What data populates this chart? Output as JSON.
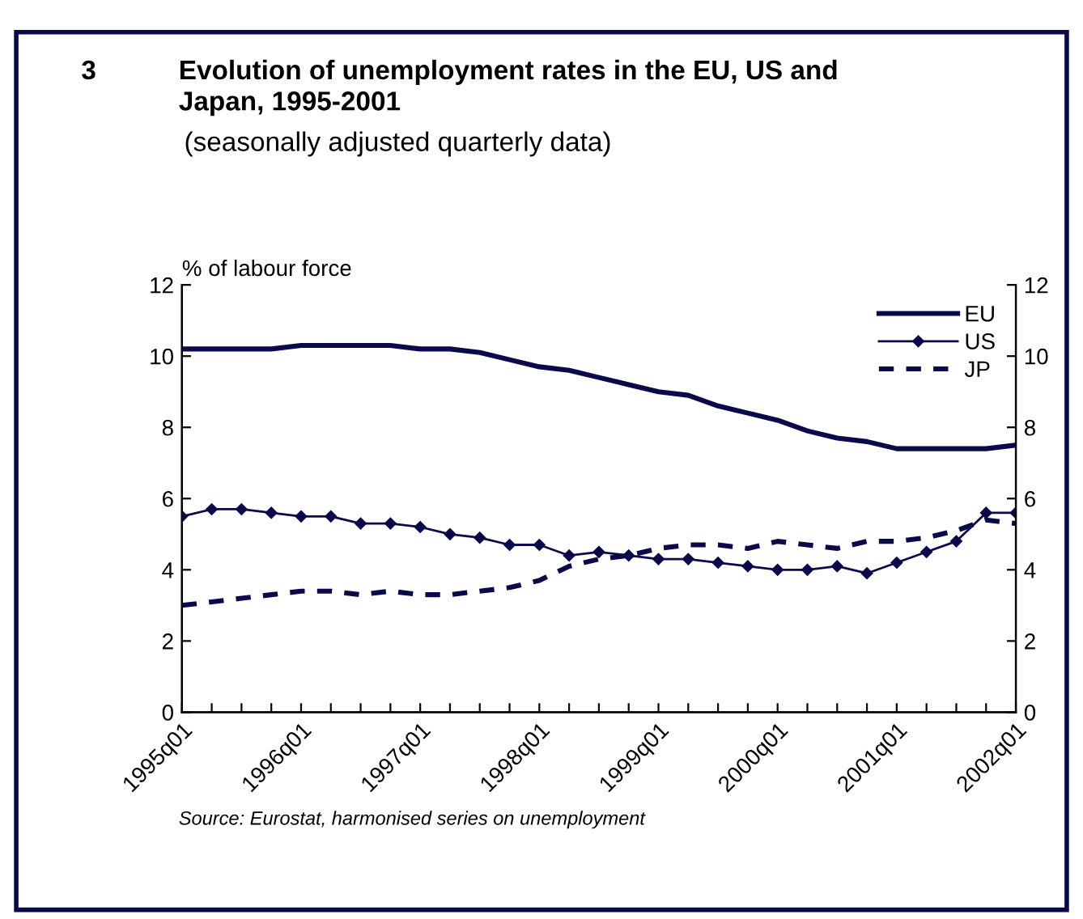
{
  "chart_data": {
    "type": "line",
    "title": "Evolution of unemployment rates in the EU, US and Japan, 1995-2001",
    "subtitle": "(seasonally adjusted quarterly data)",
    "ylabel": "% of labour force",
    "annotations": [
      "3",
      "Source: Eurostat, harmonised series on unemployment"
    ],
    "categories": [
      "1995q01",
      null,
      null,
      null,
      "1996q01",
      null,
      null,
      null,
      "1997q01",
      null,
      null,
      null,
      "1998q01",
      null,
      null,
      null,
      "1999q01",
      null,
      null,
      null,
      "2000q01",
      null,
      null,
      null,
      "2001q01",
      null,
      null,
      null,
      "2002q01"
    ],
    "series": [
      {
        "name": "EU",
        "color": "#0a0a4a",
        "line_style": "solid",
        "marker": "none",
        "values": [
          10.2,
          10.2,
          10.2,
          10.2,
          10.3,
          10.3,
          10.3,
          10.3,
          10.2,
          10.2,
          10.1,
          9.9,
          9.7,
          9.6,
          9.4,
          9.2,
          9.0,
          8.9,
          8.6,
          8.4,
          8.2,
          7.9,
          7.7,
          7.6,
          7.4,
          7.4,
          7.4,
          7.4,
          7.5
        ]
      },
      {
        "name": "US",
        "color": "#0a0a4a",
        "line_style": "solid",
        "marker": "diamond",
        "values": [
          5.5,
          5.7,
          5.7,
          5.6,
          5.5,
          5.5,
          5.3,
          5.3,
          5.2,
          5.0,
          4.9,
          4.7,
          4.7,
          4.4,
          4.5,
          4.4,
          4.3,
          4.3,
          4.2,
          4.1,
          4.0,
          4.0,
          4.1,
          3.9,
          4.2,
          4.5,
          4.8,
          5.6,
          5.6
        ]
      },
      {
        "name": "JP",
        "color": "#0a0a4a",
        "line_style": "dashed",
        "marker": "none",
        "values": [
          3.0,
          3.1,
          3.2,
          3.3,
          3.4,
          3.4,
          3.3,
          3.4,
          3.3,
          3.3,
          3.4,
          3.5,
          3.7,
          4.1,
          4.3,
          4.4,
          4.6,
          4.7,
          4.7,
          4.6,
          4.8,
          4.7,
          4.6,
          4.8,
          4.8,
          4.9,
          5.1,
          5.4,
          5.3
        ]
      }
    ],
    "ylim": [
      0,
      12
    ],
    "yticks": [
      0,
      2,
      4,
      6,
      8,
      10,
      12
    ],
    "y2lim": [
      0,
      12
    ],
    "y2ticks": [
      0,
      2,
      4,
      6,
      8,
      10,
      12
    ],
    "grid": false,
    "legend": "top right"
  }
}
